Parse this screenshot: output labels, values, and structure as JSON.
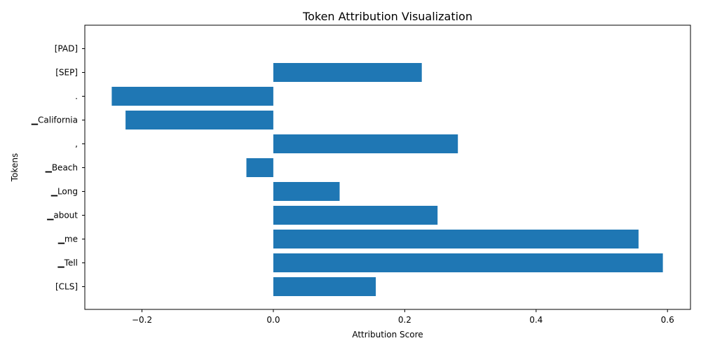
{
  "chart_data": {
    "type": "bar",
    "orientation": "horizontal",
    "title": "Token Attribution Visualization",
    "xlabel": "Attribution Score",
    "ylabel": "Tokens",
    "categories": [
      "[CLS]",
      "▁Tell",
      "▁me",
      "▁about",
      "▁Long",
      "▁Beach",
      ",",
      "▁California",
      ".",
      "[SEP]",
      "[PAD]"
    ],
    "values": [
      0.156,
      0.593,
      0.556,
      0.25,
      0.101,
      -0.041,
      0.281,
      -0.225,
      -0.246,
      0.226,
      0.0
    ],
    "xlim": [
      -0.287,
      0.635
    ],
    "xticks": [
      -0.2,
      0.0,
      0.2,
      0.4,
      0.6
    ],
    "xtick_labels": [
      "−0.2",
      "0.0",
      "0.2",
      "0.4",
      "0.6"
    ],
    "bar_color": "#1f77b4",
    "grid": false
  }
}
